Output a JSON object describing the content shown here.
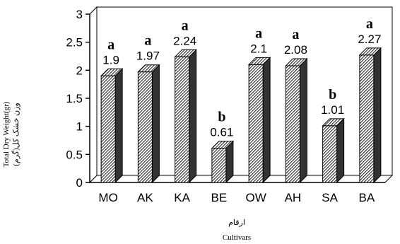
{
  "chart_data": {
    "type": "bar",
    "categories": [
      "MO",
      "AK",
      "KA",
      "BE",
      "OW",
      "AH",
      "SA",
      "BA"
    ],
    "values": [
      1.9,
      1.97,
      2.24,
      0.61,
      2.1,
      2.08,
      1.01,
      2.27
    ],
    "value_labels": [
      "1.9",
      "1.97",
      "2.24",
      "0.61",
      "2.1",
      "2.08",
      "1.01",
      "2.27"
    ],
    "group_letters": [
      "a",
      "a",
      "a",
      "b",
      "a",
      "a",
      "b",
      "a"
    ],
    "y_ticks": [
      "0",
      "0.5",
      "1",
      "1.5",
      "2",
      "2.5",
      "3"
    ],
    "ylim": [
      0,
      3
    ],
    "ylabel": "Total Dry Weight(gr)",
    "ylabel_fa": "وزن خشک کل(گرم)",
    "xlabel": "Cultivars",
    "xlabel_fa": "ارقام",
    "bar_pattern": "diagonal-hatch-3d",
    "colors": {
      "bar_face": "#ffffff",
      "hatch": "#000000",
      "side": "#222222",
      "axis": "#000000"
    }
  }
}
